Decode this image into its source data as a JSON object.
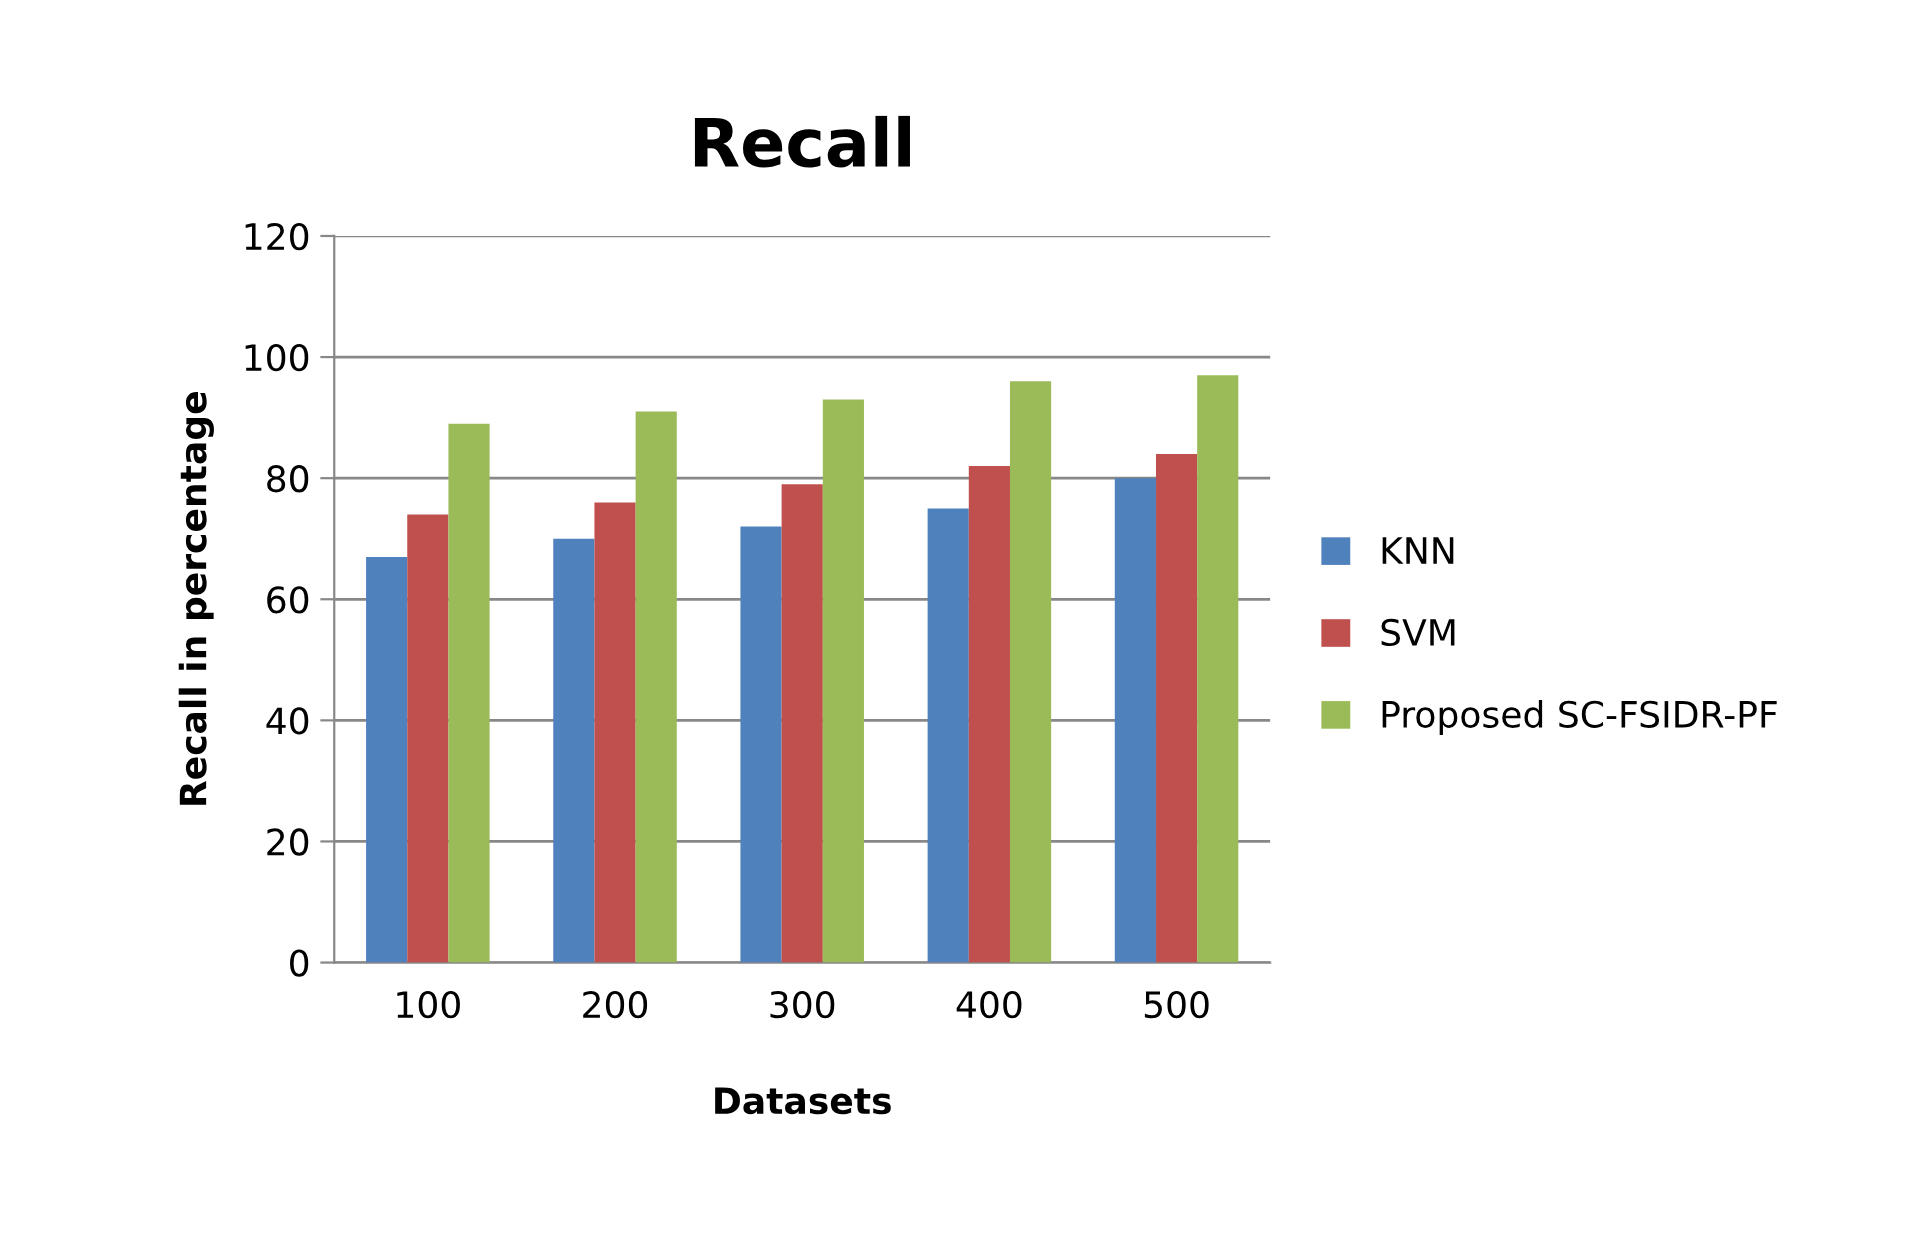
{
  "chart_data": {
    "type": "bar",
    "title": "Recall",
    "xlabel": "Datasets",
    "ylabel": "Recall in percentage",
    "categories": [
      "100",
      "200",
      "300",
      "400",
      "500"
    ],
    "series": [
      {
        "name": "KNN",
        "color": "#4f81bd",
        "values": [
          67,
          70,
          72,
          75,
          80
        ]
      },
      {
        "name": "SVM",
        "color": "#c0504d",
        "values": [
          74,
          76,
          79,
          82,
          84
        ]
      },
      {
        "name": "Proposed SC-FSIDR-PF",
        "color": "#9bbb59",
        "values": [
          89,
          91,
          93,
          96,
          97
        ]
      }
    ],
    "ylim": [
      0,
      120
    ],
    "yticks": [
      0,
      20,
      40,
      60,
      80,
      100,
      120
    ],
    "grid": "y",
    "legend": "right"
  }
}
